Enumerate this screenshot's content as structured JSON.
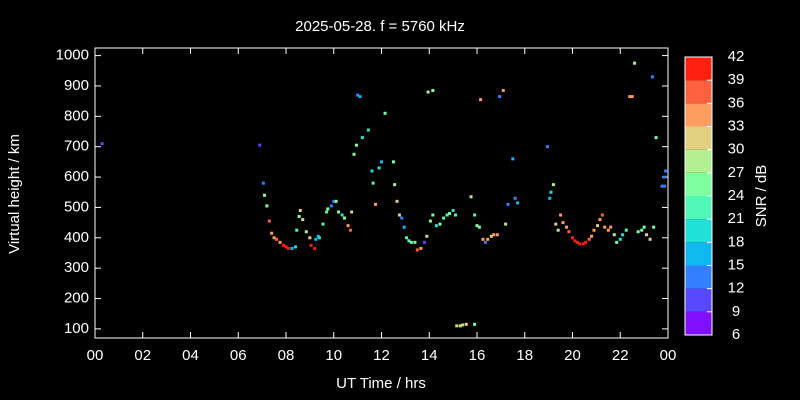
{
  "chart_data": {
    "type": "scatter",
    "title": "2025-05-28. f = 5760 kHz",
    "x_label": "UT Time / hrs",
    "y_label": "Virtual height / km",
    "x": [
      0.3,
      6.9,
      7.05,
      7.1,
      7.2,
      7.3,
      7.4,
      7.5,
      7.6,
      7.75,
      7.9,
      8.0,
      8.1,
      8.25,
      8.4,
      8.45,
      8.55,
      8.6,
      8.7,
      8.85,
      9.0,
      9.05,
      9.2,
      9.25,
      9.35,
      9.4,
      9.55,
      9.7,
      9.75,
      9.9,
      10.0,
      10.1,
      10.2,
      10.35,
      10.45,
      10.6,
      10.7,
      10.75,
      10.85,
      10.95,
      11.0,
      11.1,
      11.2,
      11.45,
      11.6,
      11.65,
      11.75,
      11.9,
      12.0,
      12.15,
      12.5,
      12.55,
      12.65,
      12.75,
      12.85,
      12.95,
      13.05,
      13.15,
      13.25,
      13.4,
      13.5,
      13.65,
      13.8,
      13.9,
      13.95,
      14.05,
      14.15,
      14.15,
      14.3,
      14.45,
      14.6,
      14.75,
      14.85,
      15.0,
      15.1,
      15.15,
      15.3,
      15.4,
      15.55,
      15.75,
      15.9,
      15.9,
      16.0,
      16.1,
      16.15,
      16.25,
      16.35,
      16.45,
      16.6,
      16.7,
      16.85,
      16.95,
      17.1,
      17.2,
      17.3,
      17.5,
      17.6,
      17.7,
      18.95,
      19.05,
      19.1,
      19.2,
      19.3,
      19.4,
      19.5,
      19.6,
      19.75,
      19.85,
      20.0,
      20.1,
      20.2,
      20.3,
      20.45,
      20.55,
      20.7,
      20.8,
      20.9,
      21.05,
      21.15,
      21.25,
      21.35,
      21.5,
      21.6,
      21.75,
      21.85,
      22.0,
      22.1,
      22.25,
      22.4,
      22.5,
      22.6,
      22.75,
      22.9,
      23.0,
      23.1,
      23.25,
      23.35,
      23.4,
      23.5,
      23.75,
      23.85,
      23.9,
      23.85
    ],
    "y": [
      710,
      705,
      580,
      540,
      505,
      455,
      415,
      400,
      395,
      385,
      375,
      370,
      365,
      365,
      370,
      425,
      470,
      490,
      460,
      420,
      400,
      375,
      365,
      395,
      405,
      400,
      445,
      485,
      495,
      505,
      520,
      520,
      485,
      475,
      465,
      440,
      425,
      485,
      675,
      705,
      870,
      865,
      730,
      755,
      620,
      580,
      510,
      630,
      650,
      810,
      650,
      575,
      520,
      475,
      465,
      435,
      400,
      390,
      385,
      385,
      360,
      365,
      385,
      405,
      880,
      455,
      885,
      475,
      440,
      445,
      465,
      475,
      480,
      490,
      475,
      110,
      110,
      113,
      115,
      535,
      475,
      115,
      440,
      435,
      855,
      395,
      385,
      395,
      405,
      410,
      410,
      865,
      885,
      445,
      510,
      660,
      530,
      515,
      700,
      530,
      550,
      575,
      445,
      425,
      475,
      450,
      435,
      420,
      400,
      390,
      385,
      380,
      380,
      385,
      395,
      405,
      425,
      440,
      460,
      475,
      435,
      425,
      435,
      410,
      385,
      395,
      410,
      425,
      865,
      865,
      975,
      420,
      425,
      435,
      410,
      395,
      930,
      435,
      730,
      570,
      570,
      620,
      600
    ],
    "snr": [
      10,
      10,
      12,
      25,
      25,
      37,
      33,
      33,
      36,
      33,
      39,
      39,
      39,
      16,
      18,
      22,
      25,
      31,
      30,
      28,
      31,
      39,
      39,
      15,
      16,
      18,
      21,
      22,
      26,
      12,
      12,
      25,
      24,
      20,
      26,
      35,
      37,
      30,
      25,
      25,
      12,
      15,
      20,
      19,
      20,
      23,
      33,
      18,
      16,
      25,
      25,
      29,
      31,
      30,
      13,
      15,
      21,
      21,
      25,
      26,
      36,
      34,
      10,
      31,
      29,
      26,
      24,
      25,
      20,
      25,
      22,
      22,
      25,
      20,
      21,
      30,
      28,
      30,
      30,
      27,
      21,
      26,
      24,
      24,
      33,
      34,
      12,
      33,
      30,
      34,
      33,
      12,
      33,
      28,
      12,
      16,
      12,
      16,
      12,
      17,
      18,
      28,
      31,
      28,
      33,
      33,
      35,
      36,
      39,
      39,
      39,
      40,
      40,
      39,
      36,
      33,
      33,
      31,
      33,
      37,
      35,
      33,
      33,
      28,
      24,
      20,
      20,
      22,
      34,
      34,
      27,
      24,
      26,
      25,
      30,
      31,
      13,
      26,
      24,
      12,
      14,
      12,
      12
    ],
    "xlim": [
      0,
      24
    ],
    "ylim": [
      70,
      1025
    ],
    "xticks": [
      {
        "value": 0,
        "label": "00"
      },
      {
        "value": 2,
        "label": "02"
      },
      {
        "value": 4,
        "label": "04"
      },
      {
        "value": 6,
        "label": "06"
      },
      {
        "value": 8,
        "label": "08"
      },
      10,
      12,
      14,
      16,
      18,
      20,
      22,
      {
        "value": 24,
        "label": "00"
      }
    ],
    "yticks": [
      100,
      200,
      300,
      400,
      500,
      600,
      700,
      800,
      900,
      1000
    ],
    "colorbar": {
      "label": "SNR / dB",
      "lim": [
        6,
        42
      ],
      "ticks": [
        6,
        9,
        12,
        15,
        18,
        21,
        24,
        27,
        30,
        33,
        36,
        39,
        42
      ],
      "colors": [
        "#8010ff",
        "#5848ff",
        "#3080ff",
        "#10b8f0",
        "#20e0d8",
        "#50f8b8",
        "#80ffa0",
        "#b0f090",
        "#e0d080",
        "#ff9c60",
        "#ff6040",
        "#ff2010"
      ]
    }
  }
}
